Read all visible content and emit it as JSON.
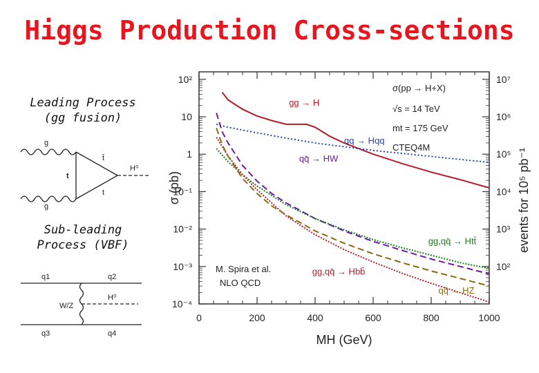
{
  "title": "Higgs Production Cross-sections",
  "left": {
    "leading_label_1": "Leading Process",
    "leading_label_2": "(gg fusion)",
    "subleading_label_1": "Sub-leading",
    "subleading_label_2": "Process (VBF)",
    "gg_diagram": {
      "g_top": "g",
      "g_bottom": "g",
      "t_left": "t",
      "t_bar": "t̄",
      "t_right": "t",
      "H": "H⁰"
    },
    "vbf_diagram": {
      "q1": "q1",
      "q2": "q2",
      "q3": "q3",
      "q4": "q4",
      "WZ": "W/Z",
      "H": "H⁰"
    }
  },
  "colors": {
    "red": "#b01c28",
    "blue": "#2244b0",
    "purple": "#6a1aa8",
    "green": "#1a7a1a",
    "olive": "#8a6a10",
    "title": "#e8141e"
  },
  "chart_data": {
    "type": "line",
    "title": "σ(pp → H+X)",
    "annotations": [
      "√s = 14 TeV",
      "mt = 175 GeV",
      "CTEQ4M",
      "M. Spira et al.",
      "NLO QCD"
    ],
    "xlabel": "MH (GeV)",
    "ylabel": "σ (pb)",
    "ylabel_right": "events for 10⁵ pb⁻¹",
    "xlim": [
      0,
      1000
    ],
    "ylim_log10": [
      -4,
      2.2
    ],
    "xticks": [
      0,
      200,
      400,
      600,
      800,
      1000
    ],
    "yticks_left": [
      "10²",
      "10",
      "1",
      "10⁻¹",
      "10⁻²",
      "10⁻³",
      "10⁻⁴"
    ],
    "yticks_right": [
      "10⁷",
      "10⁶",
      "10⁵",
      "10⁴",
      "10³",
      "10²"
    ],
    "series": [
      {
        "name": "gg → H",
        "color": "#b01c28",
        "dash": "",
        "label_x": 310,
        "label_y": 1.3,
        "x": [
          80,
          100,
          150,
          200,
          250,
          300,
          340,
          370,
          400,
          450,
          500,
          600,
          700,
          800,
          900,
          1000
        ],
        "y": [
          1.65,
          1.45,
          1.2,
          1.02,
          0.9,
          0.8,
          0.8,
          0.8,
          0.72,
          0.48,
          0.3,
          0.0,
          -0.25,
          -0.48,
          -0.68,
          -0.9
        ]
      },
      {
        "name": "qq → Hqq",
        "color": "#2244b0",
        "dash": "2,3",
        "label_x": 500,
        "label_y": 0.28,
        "x": [
          60,
          100,
          200,
          300,
          400,
          500,
          600,
          700,
          800,
          900,
          1000
        ],
        "y": [
          0.8,
          0.72,
          0.57,
          0.43,
          0.3,
          0.2,
          0.1,
          0.02,
          -0.06,
          -0.14,
          -0.22
        ]
      },
      {
        "name": "qq̄ → HW",
        "color": "#6a1aa8",
        "dash": "9,5",
        "label_x": 345,
        "label_y": -0.2,
        "x": [
          60,
          80,
          100,
          150,
          200,
          250,
          300,
          400,
          500,
          600,
          700,
          800,
          900,
          1000
        ],
        "y": [
          1.1,
          0.6,
          0.3,
          -0.3,
          -0.72,
          -1.05,
          -1.3,
          -1.72,
          -2.05,
          -2.33,
          -2.57,
          -2.8,
          -3.0,
          -3.2
        ]
      },
      {
        "name": "gg,qq̄ → Htt̄",
        "color": "#1a7a1a",
        "dash": "2,2",
        "label_x": 790,
        "label_y": -2.4,
        "x": [
          60,
          100,
          150,
          200,
          300,
          400,
          500,
          600,
          700,
          800,
          900,
          1000
        ],
        "y": [
          0.15,
          -0.2,
          -0.55,
          -0.85,
          -1.35,
          -1.72,
          -2.02,
          -2.28,
          -2.5,
          -2.7,
          -2.9,
          -3.05
        ]
      },
      {
        "name": "gg,qq̄ → Hbb̄",
        "color": "#b01c28",
        "dash": "2,2",
        "label_x": 390,
        "label_y": -3.22,
        "x": [
          60,
          100,
          150,
          200,
          300,
          400,
          500,
          600,
          700,
          800,
          900,
          1000
        ],
        "y": [
          0.45,
          -0.05,
          -0.55,
          -0.95,
          -1.65,
          -2.15,
          -2.55,
          -2.88,
          -3.18,
          -3.45,
          -3.7,
          -3.95
        ]
      },
      {
        "name": "qq̄ → HZ",
        "color": "#8a6a10",
        "dash": "9,5",
        "label_x": 825,
        "label_y": -3.72,
        "x": [
          60,
          80,
          100,
          150,
          200,
          250,
          300,
          400,
          500,
          600,
          700,
          800,
          900,
          1000
        ],
        "y": [
          0.7,
          0.25,
          -0.05,
          -0.65,
          -1.05,
          -1.38,
          -1.62,
          -2.05,
          -2.38,
          -2.66,
          -2.9,
          -3.12,
          -3.32,
          -3.52
        ]
      }
    ]
  }
}
